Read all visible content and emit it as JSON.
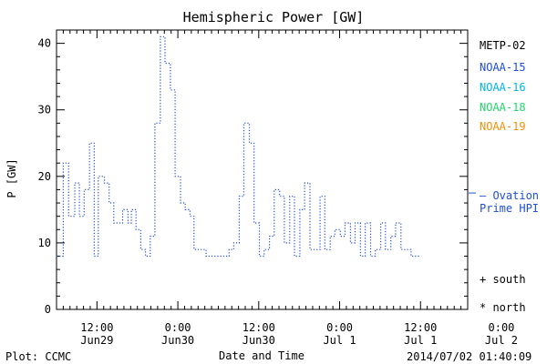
{
  "chart_data": {
    "type": "line",
    "title": "Hemispheric Power [GW]",
    "ylabel": "P [GW]",
    "xlabel": "Date and Time",
    "ylim": [
      0,
      42
    ],
    "yticks": [
      0,
      10,
      20,
      30,
      40
    ],
    "x_unit": "hours since Jun28 18:00",
    "xlim": [
      0,
      60
    ],
    "xticks": [
      {
        "x": 6,
        "line1": "12:00",
        "line2": "Jun29"
      },
      {
        "x": 18,
        "line1": "0:00",
        "line2": "Jun30"
      },
      {
        "x": 30,
        "line1": "12:00",
        "line2": "Jun30"
      },
      {
        "x": 42,
        "line1": "0:00",
        "line2": "Jul 1"
      },
      {
        "x": 54,
        "line1": "12:00",
        "line2": "Jul 1"
      },
      {
        "x": 66,
        "line1": "0:00",
        "line2": "Jul 2"
      }
    ],
    "series": [
      {
        "name": "NOAA-15",
        "color": "#1f4fd6",
        "style": "dotted-step",
        "points": [
          [
            0,
            8
          ],
          [
            1,
            8
          ],
          [
            1,
            22
          ],
          [
            1.8,
            22
          ],
          [
            1.8,
            14
          ],
          [
            2.7,
            14
          ],
          [
            2.7,
            19
          ],
          [
            3.4,
            19
          ],
          [
            3.4,
            14
          ],
          [
            4.1,
            14
          ],
          [
            4.1,
            18
          ],
          [
            4.9,
            18
          ],
          [
            4.9,
            25
          ],
          [
            5.6,
            25
          ],
          [
            5.6,
            8
          ],
          [
            6.2,
            8
          ],
          [
            6.2,
            20
          ],
          [
            7.1,
            20
          ],
          [
            7.1,
            19
          ],
          [
            7.8,
            19
          ],
          [
            7.8,
            16
          ],
          [
            8.5,
            16
          ],
          [
            8.5,
            13
          ],
          [
            9.8,
            13
          ],
          [
            9.8,
            15
          ],
          [
            10.6,
            15
          ],
          [
            10.6,
            13
          ],
          [
            11.1,
            13
          ],
          [
            11.1,
            15
          ],
          [
            11.8,
            15
          ],
          [
            11.8,
            12
          ],
          [
            12.5,
            12
          ],
          [
            12.5,
            9
          ],
          [
            13.2,
            9
          ],
          [
            13.2,
            8
          ],
          [
            13.9,
            8
          ],
          [
            13.9,
            11
          ],
          [
            14.6,
            11
          ],
          [
            14.6,
            28
          ],
          [
            15.4,
            28
          ],
          [
            15.4,
            41
          ],
          [
            16.1,
            41
          ],
          [
            16.1,
            37
          ],
          [
            16.9,
            37
          ],
          [
            16.9,
            33
          ],
          [
            17.6,
            33
          ],
          [
            17.6,
            20
          ],
          [
            18.4,
            20
          ],
          [
            18.4,
            16
          ],
          [
            19.1,
            16
          ],
          [
            19.1,
            15
          ],
          [
            19.8,
            15
          ],
          [
            19.8,
            14
          ],
          [
            20.4,
            14
          ],
          [
            20.4,
            9
          ],
          [
            22.2,
            9
          ],
          [
            22.2,
            8
          ],
          [
            25.6,
            8
          ],
          [
            25.6,
            9
          ],
          [
            26.3,
            9
          ],
          [
            26.3,
            10
          ],
          [
            27.1,
            10
          ],
          [
            27.1,
            17
          ],
          [
            27.8,
            17
          ],
          [
            27.8,
            28
          ],
          [
            28.6,
            28
          ],
          [
            28.6,
            25
          ],
          [
            29.3,
            25
          ],
          [
            29.3,
            13
          ],
          [
            30.1,
            13
          ],
          [
            30.1,
            8
          ],
          [
            30.8,
            8
          ],
          [
            30.8,
            9
          ],
          [
            31.6,
            9
          ],
          [
            31.6,
            11
          ],
          [
            32.3,
            11
          ],
          [
            32.3,
            18
          ],
          [
            33.1,
            18
          ],
          [
            33.1,
            17
          ],
          [
            33.8,
            17
          ],
          [
            33.8,
            10
          ],
          [
            34.6,
            10
          ],
          [
            34.6,
            17
          ],
          [
            35.3,
            17
          ],
          [
            35.3,
            8
          ],
          [
            36.1,
            8
          ],
          [
            36.1,
            15
          ],
          [
            36.8,
            15
          ],
          [
            36.8,
            19
          ],
          [
            37.6,
            19
          ],
          [
            37.6,
            9
          ],
          [
            39.1,
            9
          ],
          [
            39.1,
            17
          ],
          [
            39.8,
            17
          ],
          [
            39.8,
            9
          ],
          [
            40.6,
            9
          ],
          [
            40.6,
            11
          ],
          [
            41.3,
            11
          ],
          [
            41.3,
            12
          ],
          [
            42.1,
            12
          ],
          [
            42.1,
            11
          ],
          [
            42.8,
            11
          ],
          [
            42.8,
            13
          ],
          [
            43.6,
            13
          ],
          [
            43.6,
            10
          ],
          [
            44.3,
            10
          ],
          [
            44.3,
            13
          ],
          [
            45.1,
            13
          ],
          [
            45.1,
            8
          ],
          [
            45.8,
            8
          ],
          [
            45.8,
            13
          ],
          [
            46.6,
            13
          ],
          [
            46.6,
            8
          ],
          [
            47.3,
            8
          ],
          [
            47.3,
            9
          ],
          [
            48.1,
            9
          ],
          [
            48.1,
            13
          ],
          [
            48.8,
            13
          ],
          [
            48.8,
            9
          ],
          [
            49.6,
            9
          ],
          [
            49.6,
            11
          ],
          [
            50.3,
            11
          ],
          [
            50.3,
            13
          ],
          [
            51.1,
            13
          ],
          [
            51.1,
            9
          ],
          [
            52.6,
            9
          ],
          [
            52.6,
            8
          ],
          [
            54,
            8
          ]
        ]
      }
    ]
  },
  "legend": {
    "items": [
      {
        "label": "METP-02",
        "color": "#000000"
      },
      {
        "label": "NOAA-15",
        "color": "#1f4fd6"
      },
      {
        "label": "NOAA-16",
        "color": "#00b4e6"
      },
      {
        "label": "NOAA-18",
        "color": "#22d46a"
      },
      {
        "label": "NOAA-19",
        "color": "#f0900a"
      }
    ],
    "ovation_line1": "— Ovation",
    "ovation_line2": "Prime HPI",
    "ovation_color": "#1f4fd6",
    "ovation_value": 17.5,
    "south_label": "+ south",
    "north_label": "* north"
  },
  "footer": {
    "plot_credit": "Plot: CCMC",
    "timestamp": "2014/07/02 01:40:09"
  }
}
